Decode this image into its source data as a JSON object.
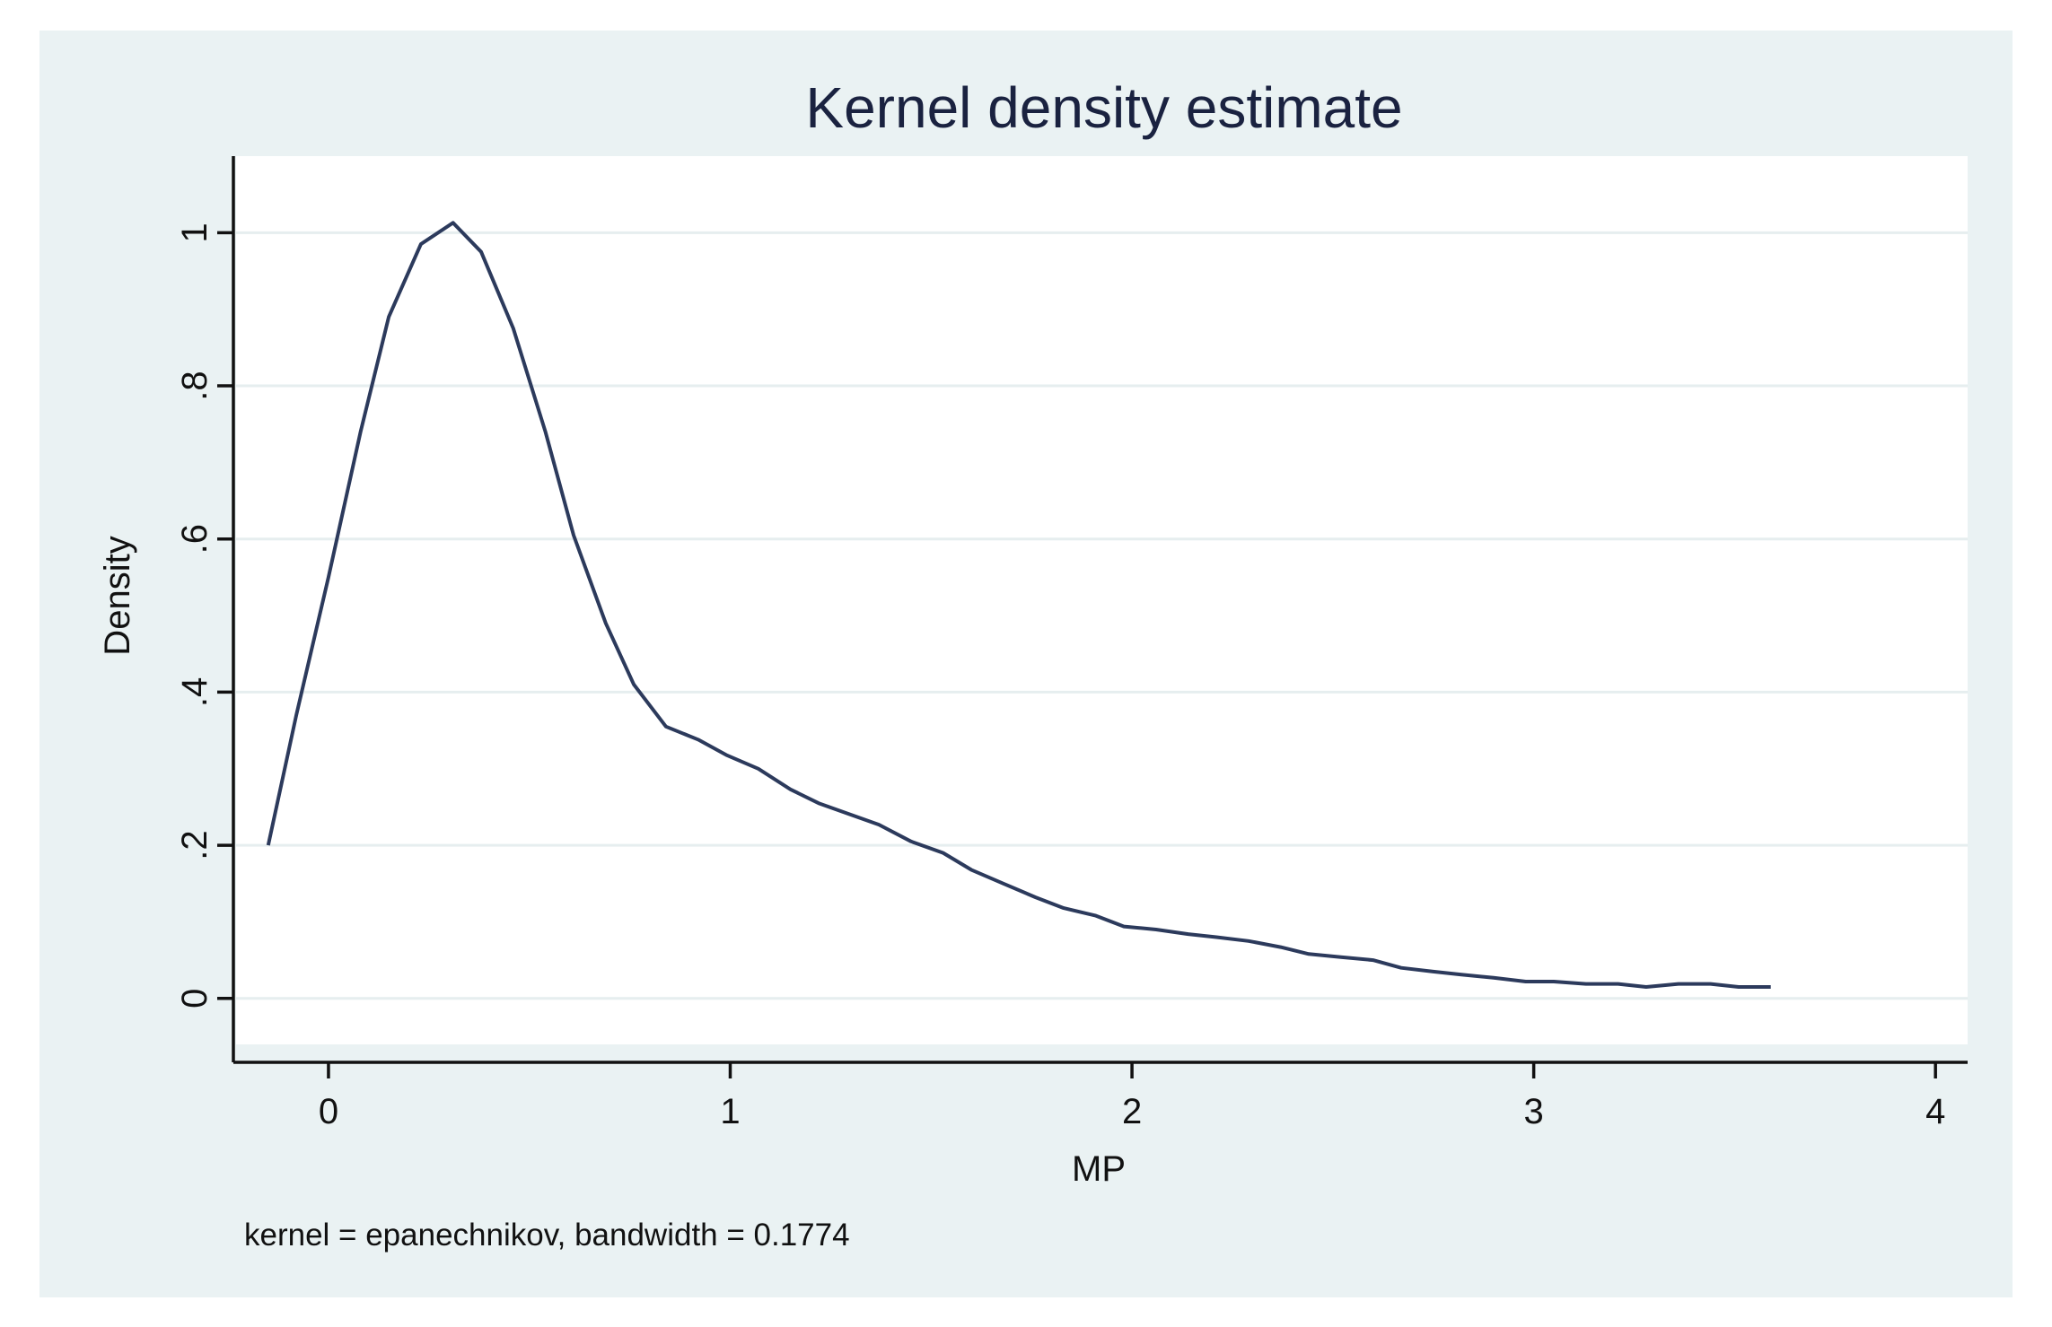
{
  "chart_data": {
    "type": "line",
    "title": "Kernel density estimate",
    "xlabel": "MP",
    "ylabel": "Density",
    "note": "kernel = epanechnikov, bandwidth = 0.1774",
    "xlim": [
      -0.23,
      4.08
    ],
    "ylim": [
      -0.06,
      1.1
    ],
    "xticks": [
      0,
      1,
      2,
      3,
      4
    ],
    "xtick_labels": [
      "0",
      "1",
      "2",
      "3",
      "4"
    ],
    "yticks": [
      0,
      0.2,
      0.4,
      0.6,
      0.8,
      1
    ],
    "ytick_labels": [
      "0",
      ".2",
      ".4",
      ".6",
      ".8",
      "1"
    ],
    "grid": true,
    "line_color": "#2c3a5c",
    "background_color": "#eaf2f3",
    "plot_background_color": "#ffffff",
    "series": [
      {
        "x": [
          -0.15,
          -0.08,
          0.0,
          0.08,
          0.15,
          0.23,
          0.31,
          0.38,
          0.46,
          0.54,
          0.61,
          0.69,
          0.76,
          0.84,
          0.92,
          0.99,
          1.07,
          1.15,
          1.22,
          1.3,
          1.37,
          1.45,
          1.53,
          1.6,
          1.68,
          1.76,
          1.83,
          1.91,
          1.98,
          2.06,
          2.14,
          2.21,
          2.29,
          2.37,
          2.44,
          2.52,
          2.6,
          2.67,
          2.75,
          2.82,
          2.9,
          2.98,
          3.05,
          3.13,
          3.21,
          3.28,
          3.36,
          3.44,
          3.51,
          3.59
        ],
        "y": [
          0.2,
          0.37,
          0.55,
          0.74,
          0.89,
          0.985,
          1.013,
          0.975,
          0.875,
          0.74,
          0.605,
          0.49,
          0.41,
          0.355,
          0.338,
          0.318,
          0.3,
          0.273,
          0.255,
          0.24,
          0.227,
          0.205,
          0.19,
          0.168,
          0.15,
          0.132,
          0.118,
          0.108,
          0.094,
          0.09,
          0.084,
          0.08,
          0.075,
          0.067,
          0.058,
          0.054,
          0.05,
          0.04,
          0.035,
          0.031,
          0.027,
          0.022,
          0.022,
          0.019,
          0.019,
          0.015,
          0.019,
          0.019,
          0.015,
          0.015
        ]
      }
    ]
  }
}
